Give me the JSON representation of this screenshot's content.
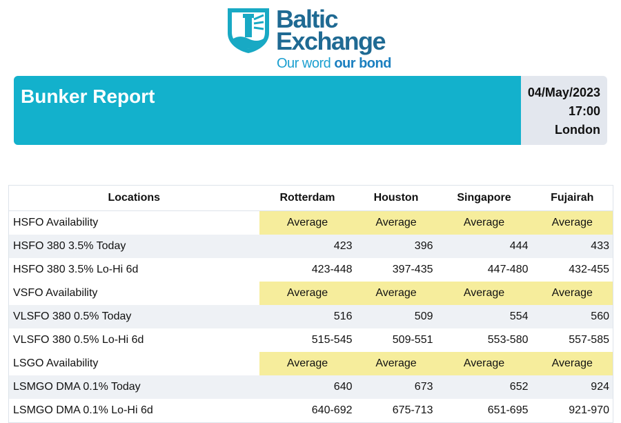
{
  "logo": {
    "line1": "Baltic",
    "line2": "Exchange",
    "tagline_plain": "Our word",
    "tagline_bold": "our bond"
  },
  "banner": {
    "title": "Bunker Report",
    "date": "04/May/2023",
    "time": "17:00",
    "location": "London"
  },
  "table": {
    "header": [
      "Locations",
      "Rotterdam",
      "Houston",
      "Singapore",
      "Fujairah"
    ],
    "rows": [
      [
        "HSFO Availability",
        "Average",
        "Average",
        "Average",
        "Average"
      ],
      [
        "HSFO 380 3.5% Today",
        "423",
        "396",
        "444",
        "433"
      ],
      [
        "HSFO 380 3.5% Lo-Hi 6d",
        "423-448",
        "397-435",
        "447-480",
        "432-455"
      ],
      [
        "VSFO Availability",
        "Average",
        "Average",
        "Average",
        "Average"
      ],
      [
        "VLSFO 380 0.5% Today",
        "516",
        "509",
        "554",
        "560"
      ],
      [
        "VLSFO 380 0.5% Lo-Hi 6d",
        "515-545",
        "509-551",
        "553-580",
        "557-585"
      ],
      [
        "LSGO Availability",
        "Average",
        "Average",
        "Average",
        "Average"
      ],
      [
        "LSMGO DMA 0.1% Today",
        "640",
        "673",
        "652",
        "924"
      ],
      [
        "LSMGO DMA 0.1% Lo-Hi 6d",
        "640-692",
        "675-713",
        "651-695",
        "921-970"
      ]
    ]
  }
}
